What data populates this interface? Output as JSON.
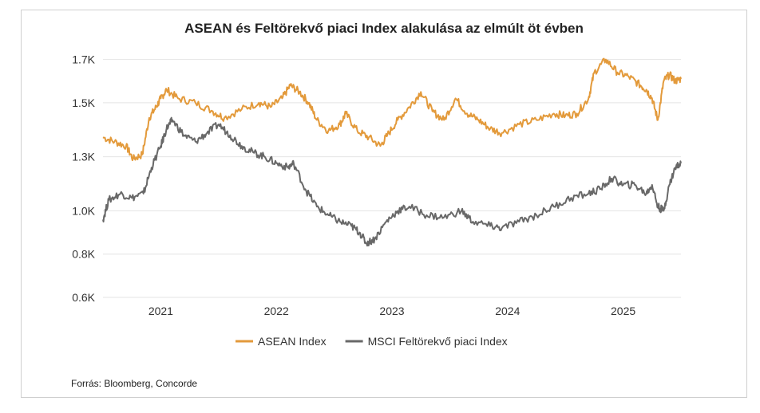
{
  "chart_data": {
    "type": "line",
    "title": "ASEAN és Feltörekvő piaci Index alakulása az elmúlt öt évben",
    "xlabel": "",
    "ylabel": "",
    "y_ticks": [
      "0.6K",
      "0.8K",
      "1.0K",
      "1.3K",
      "1.5K",
      "1.7K"
    ],
    "y_tick_values": [
      0.6,
      0.8,
      1.0,
      1.25,
      1.5,
      1.7
    ],
    "ylim": [
      0.6,
      1.75
    ],
    "x_ticks": [
      "2021",
      "2022",
      "2023",
      "2024",
      "2025"
    ],
    "x_tick_values": [
      2021.0,
      2022.0,
      2023.0,
      2024.0,
      2025.0
    ],
    "xlim": [
      2020.5,
      2025.5
    ],
    "grid": "horizontal",
    "legend": "bottom",
    "series": [
      {
        "name": "ASEAN Index",
        "color": "#E39A3B",
        "x": [
          2020.5,
          2020.6,
          2020.7,
          2020.76,
          2020.84,
          2020.9,
          2020.96,
          2021.0,
          2021.05,
          2021.15,
          2021.3,
          2021.45,
          2021.55,
          2021.7,
          2021.85,
          2021.95,
          2022.05,
          2022.12,
          2022.2,
          2022.28,
          2022.35,
          2022.45,
          2022.55,
          2022.6,
          2022.7,
          2022.8,
          2022.9,
          2022.96,
          2023.05,
          2023.15,
          2023.25,
          2023.35,
          2023.45,
          2023.55,
          2023.65,
          2023.75,
          2023.85,
          2023.95,
          2024.1,
          2024.25,
          2024.4,
          2024.5,
          2024.6,
          2024.7,
          2024.75,
          2024.85,
          2024.95,
          2025.05,
          2025.15,
          2025.2,
          2025.25,
          2025.3,
          2025.35,
          2025.4,
          2025.45,
          2025.5
        ],
        "values": [
          1.34,
          1.32,
          1.3,
          1.24,
          1.26,
          1.43,
          1.48,
          1.52,
          1.56,
          1.52,
          1.5,
          1.46,
          1.43,
          1.47,
          1.5,
          1.48,
          1.52,
          1.58,
          1.55,
          1.5,
          1.42,
          1.37,
          1.4,
          1.45,
          1.37,
          1.34,
          1.3,
          1.35,
          1.42,
          1.48,
          1.55,
          1.46,
          1.42,
          1.52,
          1.45,
          1.42,
          1.38,
          1.36,
          1.4,
          1.42,
          1.45,
          1.44,
          1.45,
          1.52,
          1.64,
          1.7,
          1.64,
          1.62,
          1.58,
          1.56,
          1.52,
          1.42,
          1.6,
          1.63,
          1.6,
          1.61
        ]
      },
      {
        "name": "MSCI Feltörekvő piaci Index",
        "color": "#686868",
        "x": [
          2020.5,
          2020.55,
          2020.65,
          2020.75,
          2020.85,
          2020.92,
          2021.0,
          2021.05,
          2021.1,
          2021.2,
          2021.3,
          2021.4,
          2021.5,
          2021.6,
          2021.7,
          2021.8,
          2021.9,
          2022.0,
          2022.1,
          2022.15,
          2022.25,
          2022.35,
          2022.45,
          2022.55,
          2022.65,
          2022.72,
          2022.78,
          2022.85,
          2022.95,
          2023.05,
          2023.15,
          2023.3,
          2023.45,
          2023.6,
          2023.7,
          2023.85,
          2023.95,
          2024.1,
          2024.25,
          2024.4,
          2024.55,
          2024.7,
          2024.8,
          2024.9,
          2025.0,
          2025.1,
          2025.2,
          2025.25,
          2025.3,
          2025.35,
          2025.4,
          2025.45,
          2025.5
        ],
        "values": [
          0.96,
          1.05,
          1.08,
          1.06,
          1.08,
          1.2,
          1.3,
          1.38,
          1.42,
          1.35,
          1.32,
          1.36,
          1.4,
          1.35,
          1.3,
          1.27,
          1.25,
          1.22,
          1.2,
          1.22,
          1.1,
          1.02,
          0.98,
          0.95,
          0.93,
          0.9,
          0.85,
          0.87,
          0.95,
          1.0,
          1.02,
          0.98,
          0.97,
          1.0,
          0.95,
          0.93,
          0.92,
          0.95,
          0.98,
          1.02,
          1.06,
          1.08,
          1.1,
          1.15,
          1.12,
          1.12,
          1.08,
          1.12,
          1.02,
          1.0,
          1.12,
          1.2,
          1.22
        ]
      }
    ]
  },
  "source_text": "Forrás: Bloomberg, Concorde"
}
